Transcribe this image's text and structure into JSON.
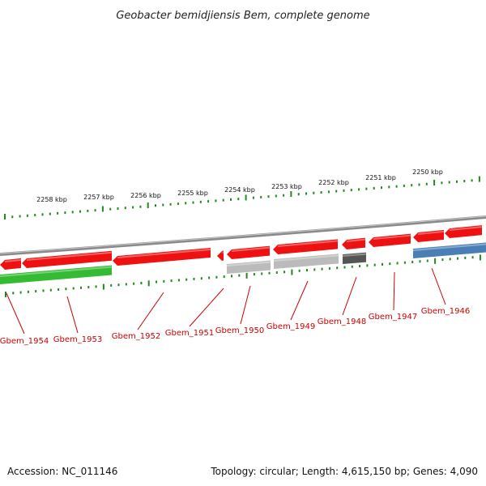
{
  "title": "Geobacter bemidjiensis Bem, complete genome",
  "footer": {
    "accession": "Accession: NC_011146",
    "summary": "Topology: circular; Length: 4,615,150 bp; Genes: 4,090"
  },
  "colors": {
    "forward_red": "#ee1111",
    "reverse_green": "#33bb33",
    "backbone": "#888888",
    "pseudo_light": "#bbbbbb",
    "pseudo_dark": "#555555",
    "rna_blue": "#4a7fb5",
    "tick_green": "#228822",
    "label_red": "#cc0000"
  },
  "scale_ticks": [
    "2258 kbp",
    "2257 kbp",
    "2256 kbp",
    "2255 kbp",
    "2254 kbp",
    "2253 kbp",
    "2252 kbp",
    "2251 kbp",
    "2250 kbp"
  ],
  "genes": [
    {
      "label": "Gbem_1954",
      "kind": "forward-red"
    },
    {
      "label": "Gbem_1953",
      "kind": "forward-red"
    },
    {
      "label": "Gbem_1952",
      "kind": "forward-red"
    },
    {
      "label": "Gbem_1951",
      "kind": "forward-red"
    },
    {
      "label": "Gbem_1950",
      "kind": "forward-red"
    },
    {
      "label": "Gbem_1949",
      "kind": "forward-red"
    },
    {
      "label": "Gbem_1948",
      "kind": "forward-red"
    },
    {
      "label": "Gbem_1947",
      "kind": "forward-red"
    },
    {
      "label": "Gbem_1946",
      "kind": "forward-red"
    }
  ]
}
